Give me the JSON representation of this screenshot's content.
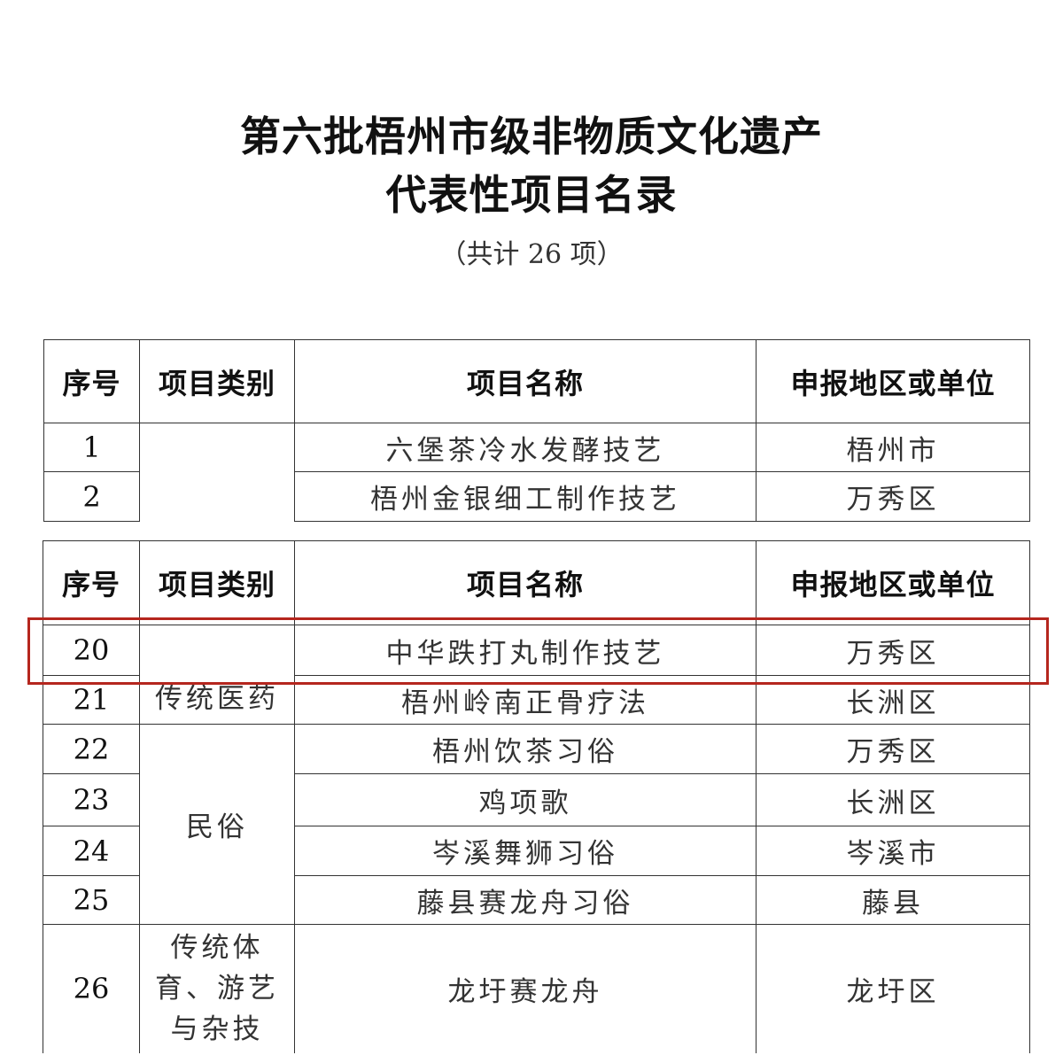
{
  "document": {
    "title_line1": "第六批梧州市级非物质文化遗产",
    "title_line2": "代表性项目名录",
    "subtitle": "（共计 26 项）"
  },
  "table_headers": [
    "序号",
    "项目类别",
    "项目名称",
    "申报地区或单位"
  ],
  "table1": {
    "category": "",
    "rows": [
      {
        "no": "1",
        "name": "六堡茶冷水发酵技艺",
        "region": "梧州市"
      },
      {
        "no": "2",
        "name": "梧州金银细工制作技艺",
        "region": "万秀区"
      }
    ]
  },
  "table2": {
    "categories": [
      "传统医药",
      "民俗",
      "传统体育、游艺与杂技"
    ],
    "category_26_lines": [
      "传统体",
      "育、游艺",
      "与杂技"
    ],
    "rows": [
      {
        "no": "20",
        "name": "中华跌打丸制作技艺",
        "region": "万秀区"
      },
      {
        "no": "21",
        "name": "梧州岭南正骨疗法",
        "region": "长洲区"
      },
      {
        "no": "22",
        "name": "梧州饮茶习俗",
        "region": "万秀区"
      },
      {
        "no": "23",
        "name": "鸡项歌",
        "region": "长洲区"
      },
      {
        "no": "24",
        "name": "岑溪舞狮习俗",
        "region": "岑溪市"
      },
      {
        "no": "25",
        "name": "藤县赛龙舟习俗",
        "region": "藤县"
      },
      {
        "no": "26",
        "name": "龙圩赛龙舟",
        "region": "龙圩区"
      }
    ]
  },
  "highlight": {
    "row": "20",
    "color": "#b5261e"
  }
}
